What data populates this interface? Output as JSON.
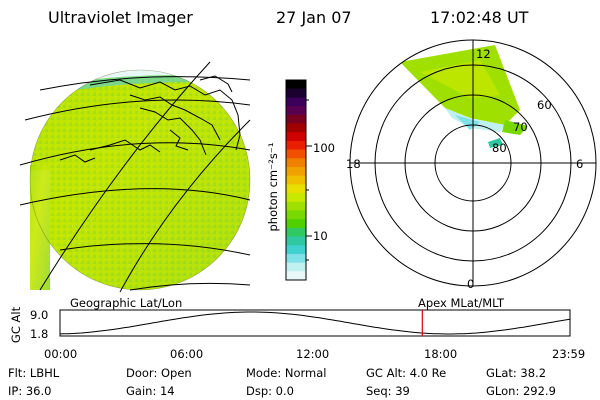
{
  "header": {
    "title": "Ultraviolet Imager",
    "date": "27 Jan 07",
    "time": "17:02:48 UT"
  },
  "colorbar": {
    "unit_label": "photon cm⁻²s⁻¹",
    "ticks": [
      "100",
      "10"
    ],
    "colors": [
      "#000000",
      "#1a0030",
      "#3a005a",
      "#5a0050",
      "#7a0020",
      "#a00000",
      "#d00000",
      "#e82000",
      "#f05000",
      "#f08000",
      "#f0a000",
      "#f0c000",
      "#e8e000",
      "#c8e800",
      "#a0e000",
      "#78d800",
      "#50d000",
      "#30c860",
      "#30c8a0",
      "#40d0d0",
      "#80e0e8",
      "#c0f0f0",
      "#e8f8f8"
    ]
  },
  "polar": {
    "mlt_labels": [
      "12",
      "18",
      "6",
      "0"
    ],
    "lat_labels": [
      "60",
      "70",
      "80"
    ]
  },
  "timeline": {
    "y_label": "GC Alt",
    "y_ticks": [
      "9.0",
      "1.8"
    ],
    "left_label": "Geographic Lat/Lon",
    "right_label": "Apex  MLat/MLT",
    "x_ticks": [
      "00:00",
      "06:00",
      "12:00",
      "18:00",
      "23:59"
    ],
    "current_time_hours": 17.05,
    "line_color": "#e00000"
  },
  "info": {
    "filter": "Flt: LBHL",
    "ip": "IP: 36.0",
    "door": "Door: Open",
    "gain": "Gain: 14",
    "mode": "Mode: Normal",
    "dsp": "Dsp:      0.0",
    "gc_alt": "GC Alt: 4.0 Re",
    "seq": "Seq: 39",
    "glat": "GLat:  38.2",
    "glon": "GLon: 292.9"
  }
}
